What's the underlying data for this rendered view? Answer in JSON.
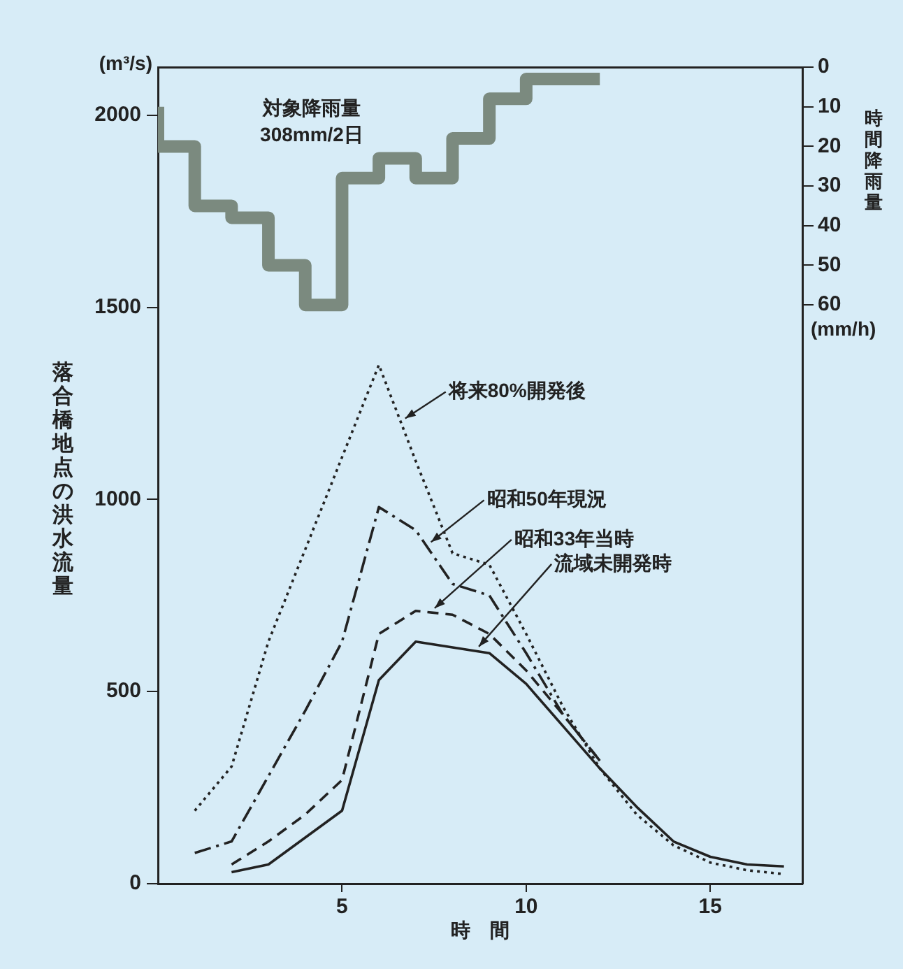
{
  "chart_data": {
    "type": "line",
    "xlabel": "時　間",
    "ylabel": "落合橋地点の洪水流量",
    "y2label": "時間降雨量",
    "annotations": [
      "対象降雨量\n308mm/2日",
      "(m³/s)",
      "(mm/h)"
    ],
    "xlim": [
      0,
      17.5
    ],
    "xticks": [
      5,
      10,
      15
    ],
    "ylim": [
      0,
      2125
    ],
    "yticks": [
      0,
      500,
      1000,
      1500,
      2000
    ],
    "y2lim": [
      206,
      0
    ],
    "y2ticks": [
      0,
      10,
      20,
      30,
      40,
      50,
      60
    ],
    "series": [
      {
        "name": "将来80%開発後",
        "color": "#222222",
        "line_style": "dotted",
        "x": [
          1,
          2,
          3,
          4,
          5,
          6,
          7,
          8,
          9,
          10,
          11,
          12,
          13,
          14,
          15,
          16,
          17
        ],
        "values": [
          190,
          305,
          630,
          870,
          1110,
          1350,
          1100,
          860,
          830,
          650,
          460,
          300,
          180,
          100,
          55,
          35,
          25
        ]
      },
      {
        "name": "昭和50年現況",
        "color": "#222222",
        "line_style": "dashdot",
        "x": [
          1,
          2,
          3,
          4,
          5,
          6,
          7,
          8,
          9,
          10,
          11,
          12
        ],
        "values": [
          80,
          110,
          280,
          450,
          630,
          980,
          920,
          780,
          750,
          600,
          440,
          320
        ]
      },
      {
        "name": "昭和33年当時",
        "color": "#222222",
        "line_style": "dashed",
        "x": [
          2,
          3,
          4,
          5,
          6,
          7,
          8,
          9,
          10,
          11,
          12
        ],
        "values": [
          50,
          110,
          180,
          270,
          650,
          710,
          700,
          650,
          555,
          440,
          320
        ]
      },
      {
        "name": "流域未開発時",
        "color": "#222222",
        "line_style": "solid",
        "x": [
          2,
          3,
          4,
          5,
          6,
          7,
          8,
          9,
          10,
          11,
          12,
          13,
          14,
          15,
          16,
          17
        ],
        "values": [
          30,
          50,
          120,
          190,
          530,
          630,
          615,
          600,
          520,
          410,
          300,
          200,
          110,
          70,
          50,
          45
        ]
      },
      {
        "type": "step",
        "axis": "y2",
        "color": "#7b8a7f",
        "x": [
          0,
          1,
          2,
          3,
          4,
          5,
          6,
          7,
          8,
          9,
          10,
          11,
          12
        ],
        "values": [
          10,
          20,
          35,
          38,
          50,
          60,
          28,
          23,
          28,
          18,
          8,
          3,
          3
        ]
      }
    ],
    "marker": "none",
    "grid": false,
    "legend": false
  }
}
